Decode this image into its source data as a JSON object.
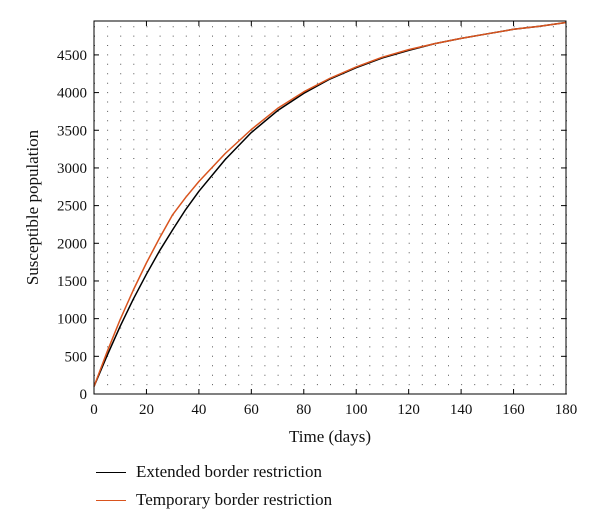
{
  "chart_data": {
    "type": "line",
    "title": "",
    "xlabel": "Time (days)",
    "ylabel": "Susceptible population",
    "xlim": [
      0,
      180
    ],
    "ylim": [
      0,
      4950
    ],
    "xticks": [
      0,
      20,
      40,
      60,
      80,
      100,
      120,
      140,
      160,
      180
    ],
    "yticks": [
      0,
      500,
      1000,
      1500,
      2000,
      2500,
      3000,
      3500,
      4000,
      4500
    ],
    "grid": true,
    "legend_position": "bottom",
    "series": [
      {
        "name": "Extended border restriction",
        "color": "#000000",
        "x": [
          0,
          5,
          10,
          15,
          20,
          25,
          30,
          35,
          40,
          50,
          60,
          70,
          80,
          90,
          100,
          110,
          120,
          130,
          140,
          150,
          160,
          170,
          180
        ],
        "y": [
          100,
          510,
          900,
          1260,
          1590,
          1900,
          2180,
          2450,
          2690,
          3110,
          3470,
          3760,
          3990,
          4180,
          4330,
          4460,
          4560,
          4650,
          4720,
          4780,
          4840,
          4880,
          4930
        ]
      },
      {
        "name": "Temporary border restriction",
        "color": "#d9541e",
        "x": [
          0,
          5,
          10,
          15,
          20,
          25,
          30,
          35,
          40,
          50,
          60,
          70,
          80,
          90,
          100,
          110,
          120,
          130,
          140,
          150,
          160,
          170,
          180
        ],
        "y": [
          100,
          560,
          990,
          1380,
          1740,
          2070,
          2380,
          2610,
          2820,
          3190,
          3510,
          3790,
          4010,
          4190,
          4340,
          4470,
          4570,
          4650,
          4720,
          4780,
          4840,
          4880,
          4930
        ]
      }
    ]
  }
}
